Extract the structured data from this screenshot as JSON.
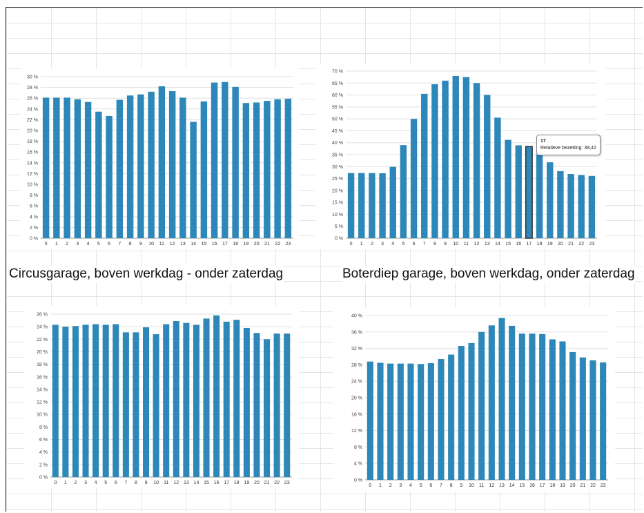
{
  "captions": {
    "left": "Circusgarage, boven werkdag - onder zaterdag",
    "right": "Boterdiep garage, boven werkdag, onder zaterdag"
  },
  "tooltip": {
    "hour": "17",
    "text": "Relatieve bezetting: 38,42"
  },
  "colors": {
    "bar": "#2d87b8",
    "highlight_border": "#333333",
    "grid": "#e0e0e0"
  },
  "chart_data": [
    {
      "id": "circus-werkdag",
      "type": "bar",
      "categories": [
        "0",
        "1",
        "2",
        "3",
        "4",
        "5",
        "6",
        "7",
        "8",
        "9",
        "10",
        "11",
        "12",
        "13",
        "14",
        "15",
        "16",
        "17",
        "18",
        "19",
        "20",
        "21",
        "22",
        "23"
      ],
      "values": [
        26.1,
        26.1,
        26.1,
        25.8,
        25.3,
        23.5,
        22.7,
        25.7,
        26.5,
        26.7,
        27.2,
        28.2,
        27.3,
        26.1,
        21.6,
        25.4,
        28.9,
        29.0,
        28.1,
        25.1,
        25.2,
        25.5,
        25.8,
        25.9
      ],
      "yticks": [
        "0 %",
        "2 %",
        "4 %",
        "6 %",
        "8 %",
        "10 %",
        "12 %",
        "14 %",
        "16 %",
        "18 %",
        "20 %",
        "22 %",
        "24 %",
        "26 %",
        "28 %",
        "30 %"
      ],
      "ylim": [
        0,
        30
      ]
    },
    {
      "id": "boterdiep-werkdag",
      "type": "bar",
      "categories": [
        "0",
        "1",
        "2",
        "3",
        "4",
        "5",
        "6",
        "7",
        "8",
        "9",
        "10",
        "11",
        "12",
        "13",
        "14",
        "15",
        "16",
        "17",
        "18",
        "19",
        "20",
        "21",
        "22",
        "23"
      ],
      "values": [
        27.3,
        27.3,
        27.3,
        27.2,
        29.9,
        39.0,
        50.0,
        60.5,
        64.5,
        66.0,
        68.0,
        67.5,
        65.0,
        60.0,
        50.5,
        41.2,
        38.9,
        38.42,
        35.0,
        31.8,
        28.1,
        26.9,
        26.5,
        26.1
      ],
      "yticks": [
        "0 %",
        "5 %",
        "10 %",
        "15 %",
        "20 %",
        "25 %",
        "30 %",
        "35 %",
        "40 %",
        "45 %",
        "50 %",
        "55 %",
        "60 %",
        "65 %",
        "70 %"
      ],
      "ylim": [
        0,
        70
      ],
      "highlight_index": 17
    },
    {
      "id": "circus-zaterdag",
      "type": "bar",
      "categories": [
        "0",
        "1",
        "2",
        "3",
        "4",
        "5",
        "6",
        "7",
        "8",
        "9",
        "10",
        "11",
        "12",
        "13",
        "14",
        "15",
        "16",
        "17",
        "18",
        "19",
        "20",
        "21",
        "22",
        "23"
      ],
      "values": [
        24.3,
        24.0,
        24.1,
        24.3,
        24.4,
        24.3,
        24.4,
        23.1,
        23.1,
        23.9,
        22.8,
        24.4,
        24.9,
        24.6,
        24.3,
        25.3,
        25.8,
        24.8,
        25.1,
        23.8,
        23.0,
        22.0,
        22.9,
        22.9
      ],
      "yticks": [
        "0 %",
        "2 %",
        "4 %",
        "6 %",
        "8 %",
        "10 %",
        "12 %",
        "14 %",
        "16 %",
        "18 %",
        "20 %",
        "22 %",
        "24 %",
        "26 %"
      ],
      "ylim": [
        0,
        26
      ]
    },
    {
      "id": "boterdiep-zaterdag",
      "type": "bar",
      "categories": [
        "0",
        "1",
        "2",
        "3",
        "4",
        "5",
        "6",
        "7",
        "8",
        "9",
        "10",
        "11",
        "12",
        "13",
        "14",
        "15",
        "16",
        "17",
        "18",
        "19",
        "20",
        "21",
        "22",
        "23"
      ],
      "values": [
        28.8,
        28.5,
        28.3,
        28.3,
        28.3,
        28.2,
        28.4,
        29.4,
        30.5,
        32.6,
        33.3,
        36.0,
        37.6,
        39.4,
        37.5,
        35.6,
        35.6,
        35.5,
        34.2,
        33.7,
        31.1,
        29.8,
        29.1,
        28.6
      ],
      "yticks": [
        "0 %",
        "4 %",
        "8 %",
        "12 %",
        "16 %",
        "20 %",
        "24 %",
        "28 %",
        "32 %",
        "36 %",
        "40 %"
      ],
      "ylim": [
        0,
        40
      ]
    }
  ]
}
